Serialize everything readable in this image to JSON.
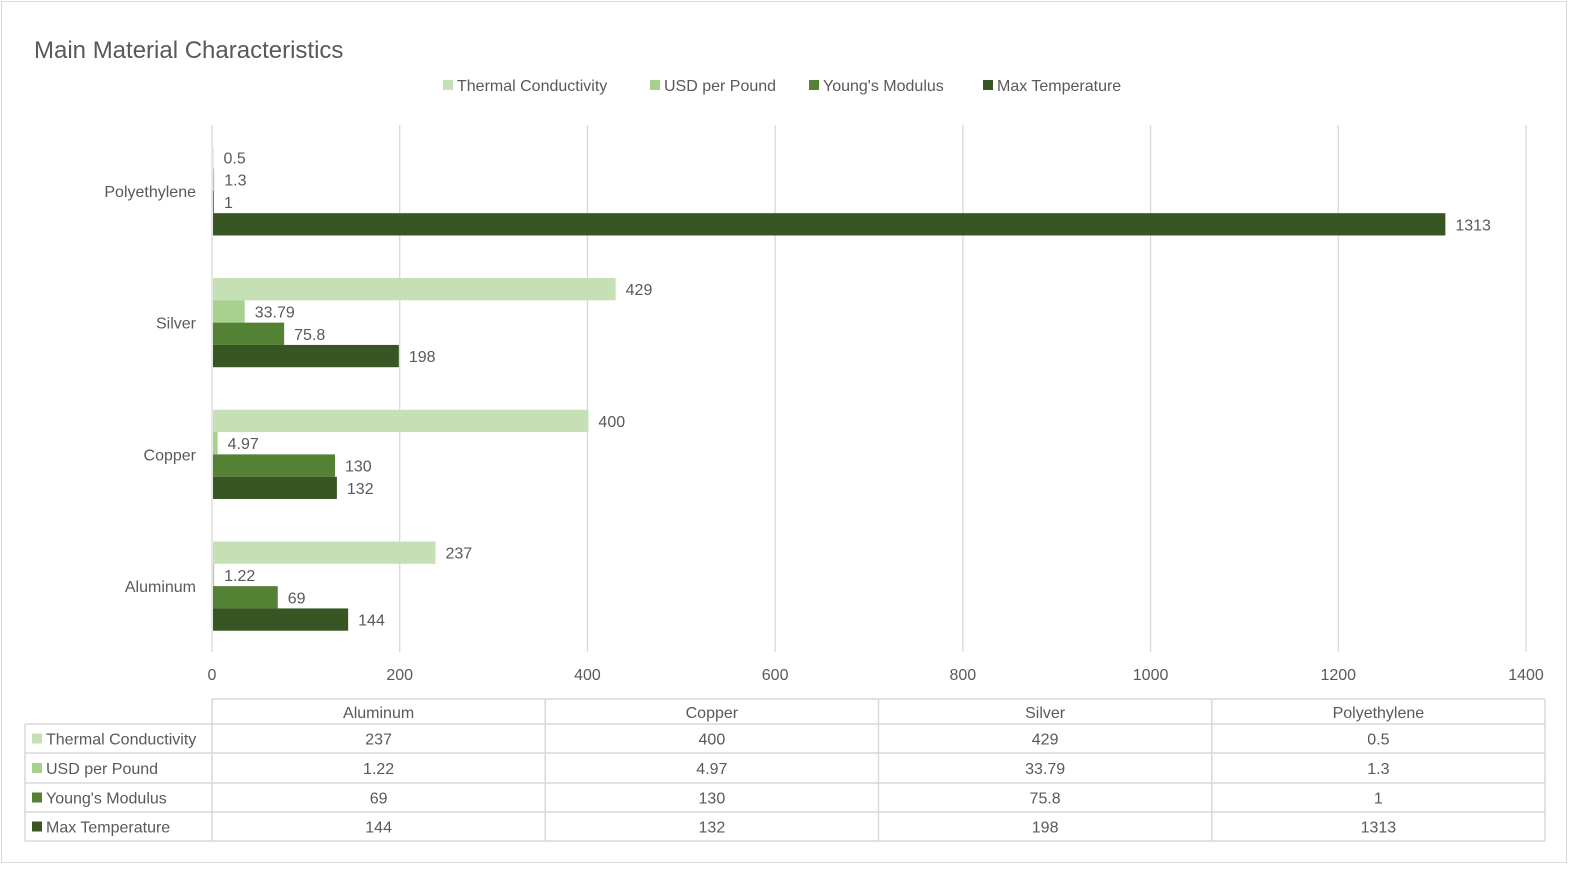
{
  "chart_data": {
    "type": "bar",
    "orientation": "horizontal",
    "title": "Main Material Characteristics",
    "categories": [
      "Aluminum",
      "Copper",
      "Silver",
      "Polyethylene"
    ],
    "series": [
      {
        "name": "Thermal Conductivity",
        "color": "#C5E0B4",
        "values": [
          237,
          400,
          429,
          0.5
        ],
        "labels": [
          "237",
          "400",
          "429",
          "0.5"
        ]
      },
      {
        "name": "USD per Pound",
        "color": "#A9D18E",
        "values": [
          1.22,
          4.97,
          33.79,
          1.3
        ],
        "labels": [
          "1.22",
          "4.97",
          "33.79",
          "1.3"
        ]
      },
      {
        "name": "Young's Modulus",
        "color": "#548235",
        "values": [
          69,
          130,
          75.8,
          1
        ],
        "labels": [
          "69",
          "130",
          "75.8",
          "1"
        ]
      },
      {
        "name": "Max Temperature",
        "color": "#375623",
        "values": [
          144,
          132,
          198,
          1313
        ],
        "labels": [
          "144",
          "132",
          "198",
          "1313"
        ]
      }
    ],
    "xlim": [
      0,
      1400
    ],
    "xticks": [
      "0",
      "200",
      "400",
      "600",
      "800",
      "1000",
      "1200",
      "1400"
    ],
    "grid": true,
    "legend": "top",
    "data_table": true
  }
}
